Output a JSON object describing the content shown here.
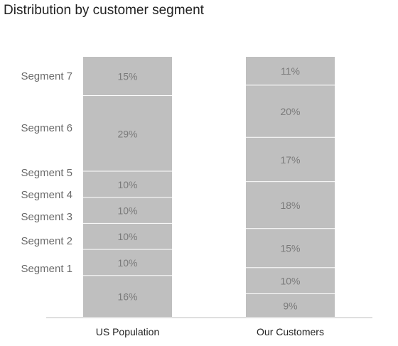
{
  "chart_data": {
    "type": "bar",
    "stacked": true,
    "title": "Distribution by customer segment",
    "categories": [
      "US Population",
      "Our Customers"
    ],
    "series": [
      {
        "name": "Segment 1",
        "values": [
          16,
          9
        ]
      },
      {
        "name": "Segment 2",
        "values": [
          10,
          10
        ]
      },
      {
        "name": "Segment 3",
        "values": [
          10,
          15
        ]
      },
      {
        "name": "Segment 4",
        "values": [
          10,
          18
        ]
      },
      {
        "name": "Segment 5",
        "values": [
          10,
          17
        ]
      },
      {
        "name": "Segment 6",
        "values": [
          29,
          20
        ]
      },
      {
        "name": "Segment 7",
        "values": [
          15,
          11
        ]
      }
    ],
    "data_labels": [
      [
        "16%",
        "10%",
        "10%",
        "10%",
        "10%",
        "29%",
        "15%"
      ],
      [
        "9%",
        "10%",
        "15%",
        "18%",
        "17%",
        "20%",
        "11%"
      ]
    ],
    "segment_labels": [
      "Segment 1",
      "Segment 2",
      "Segment 3",
      "Segment 4",
      "Segment 5",
      "Segment 6",
      "Segment 7"
    ],
    "ylim": [
      0,
      100
    ],
    "grid": false,
    "legend": "left",
    "colors": {
      "bar": "#bfbfbf",
      "separator": "#ffffff",
      "axis": "#bfbfbf"
    }
  }
}
